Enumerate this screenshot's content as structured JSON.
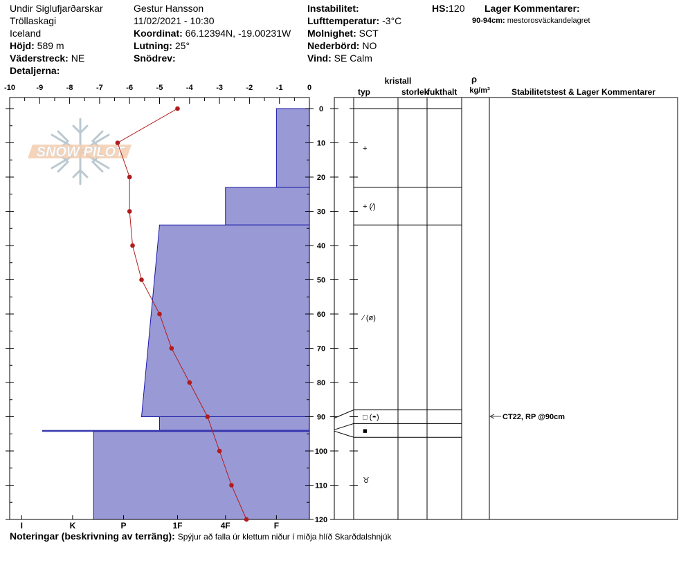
{
  "header": {
    "location": "Undir Siglufjarðarskar",
    "range": "Tröllaskagi",
    "country": "Iceland",
    "elevation_label": "Höjd:",
    "elevation_value": "589 m",
    "aspect_label": "Väderstreck:",
    "aspect_value": "NE",
    "details_label": "Detaljerna:",
    "observer": "Gestur Hansson",
    "datetime": "11/02/2021 - 10:30",
    "coord_label": "Koordinat:",
    "coord_value": "66.12394N, -19.00231W",
    "slope_label": "Lutning:",
    "slope_value": "25°",
    "drift_label": "Snödrev:",
    "drift_value": "",
    "instability_label": "Instabilitet:",
    "instability_value": "",
    "airtemp_label": "Lufttemperatur:",
    "airtemp_value": "-3°C",
    "sky_label": "Molnighet:",
    "sky_value": "SCT",
    "precip_label": "Nederbörd:",
    "precip_value": "NO",
    "wind_label": "Vind:",
    "wind_value": "SE Calm",
    "hs_label": "HS:",
    "hs_value": "120",
    "layer_comments_label": "Lager Kommentarer:",
    "layer_comment_range": "90-94cm:",
    "layer_comment_text": "mestorosväckandelagret"
  },
  "logo_text": "SNOW PILOT",
  "notes_label": "Noteringar (beskrivning av terräng):",
  "notes_text": "Spýjur að falla úr klettum niður í miðja hlíð Skarðdalshnjúk",
  "table_headers": {
    "crystal": "kristall",
    "type": "typ",
    "size": "storlek",
    "moisture": "fukthalt",
    "rho": "ρ",
    "density_unit": "kg/m³",
    "stability": "Stabilitetstest & Lager Kommentarer"
  },
  "test_result": "CT22, RP @90cm",
  "colors": {
    "hardness_fill": "#9999d6",
    "hardness_edge": "#1a1aa6",
    "temp_line": "#b01c1c",
    "temp_point": "#b01c1c"
  },
  "chart_data": {
    "type": "snow_profile",
    "temperature_axis": {
      "range": [
        -10,
        0
      ],
      "ticks": [
        "-10",
        "-9",
        "-8",
        "-7",
        "-6",
        "-5",
        "-4",
        "-3",
        "-2",
        "-1",
        "0"
      ]
    },
    "depth_axis": {
      "range": [
        0,
        120
      ],
      "ticks": [
        "0",
        "10",
        "20",
        "30",
        "40",
        "50",
        "60",
        "70",
        "80",
        "90",
        "100",
        "110",
        "120"
      ]
    },
    "hardness_axis": {
      "labels": [
        "I",
        "K",
        "P",
        "1F",
        "4F",
        "F"
      ],
      "positions": [
        -9.6,
        -7.9,
        -6.2,
        -4.4,
        -2.8,
        -1.1
      ]
    },
    "temperature_profile": [
      {
        "depth": 0,
        "temp": -4.4
      },
      {
        "depth": 10,
        "temp": -6.4
      },
      {
        "depth": 20,
        "temp": -6.0
      },
      {
        "depth": 30,
        "temp": -6.0
      },
      {
        "depth": 40,
        "temp": -5.9
      },
      {
        "depth": 50,
        "temp": -5.6
      },
      {
        "depth": 60,
        "temp": -5.0
      },
      {
        "depth": 70,
        "temp": -4.6
      },
      {
        "depth": 80,
        "temp": -4.0
      },
      {
        "depth": 90,
        "temp": -3.4
      },
      {
        "depth": 100,
        "temp": -3.0
      },
      {
        "depth": 110,
        "temp": -2.6
      },
      {
        "depth": 120,
        "temp": -2.1
      }
    ],
    "hardness_layers": [
      {
        "top": 0,
        "bottom": 23,
        "hardness_top": -1.1,
        "hardness_bottom": -1.1
      },
      {
        "top": 23,
        "bottom": 34,
        "hardness_top": -2.8,
        "hardness_bottom": -2.8
      },
      {
        "top": 34,
        "bottom": 90,
        "hardness_top": -5.0,
        "hardness_bottom": -5.6
      },
      {
        "top": 90,
        "bottom": 94,
        "hardness_top": -5.0,
        "hardness_bottom": -5.0
      },
      {
        "top": 94,
        "bottom": 94.3,
        "hardness_top": -8.9,
        "hardness_bottom": -8.9
      },
      {
        "top": 94.3,
        "bottom": 120,
        "hardness_top": -7.2,
        "hardness_bottom": -7.2
      }
    ],
    "layer_boundaries": [
      23,
      34,
      88,
      92,
      96
    ],
    "grain_symbols": [
      {
        "depth": 11.5,
        "symbol": "+"
      },
      {
        "depth": 28.5,
        "symbol": "+ (⁄)"
      },
      {
        "depth": 61,
        "symbol": "⁄ (ø)"
      },
      {
        "depth": 90,
        "symbol": "□ (◓)"
      },
      {
        "depth": 94,
        "symbol": "■"
      },
      {
        "depth": 108.5,
        "symbol": "♉"
      }
    ]
  }
}
